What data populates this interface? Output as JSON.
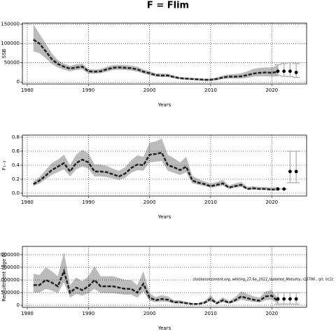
{
  "title": "F = Flim",
  "chart_data": [
    {
      "type": "line",
      "ylabel": "SSB",
      "xlabel": "Years",
      "color": "#222222",
      "band_color": "#bbbbbb",
      "grid": true,
      "xlim": [
        1979.2,
        2025.7
      ],
      "ylim": [
        -5000,
        153000
      ],
      "xticks": [
        1980,
        1990,
        2000,
        2010,
        2020
      ],
      "yticks": [
        0,
        50000,
        100000,
        150000
      ],
      "x": [
        1981,
        1982,
        1983,
        1984,
        1985,
        1986,
        1987,
        1988,
        1989,
        1990,
        1991,
        1992,
        1993,
        1994,
        1995,
        1996,
        1997,
        1998,
        1999,
        2000,
        2001,
        2002,
        2003,
        2004,
        2005,
        2006,
        2007,
        2008,
        2009,
        2010,
        2011,
        2012,
        2013,
        2014,
        2015,
        2016,
        2017,
        2018,
        2019,
        2020,
        2021
      ],
      "values": [
        110000,
        100000,
        80000,
        60000,
        47000,
        40000,
        35000,
        38000,
        40000,
        28000,
        27000,
        28000,
        33000,
        37000,
        38000,
        37000,
        36000,
        33000,
        27000,
        23000,
        18000,
        17000,
        17000,
        13000,
        10000,
        9000,
        8000,
        7000,
        6000,
        6000,
        8000,
        12000,
        14000,
        14000,
        15000,
        18000,
        22000,
        24000,
        25000,
        24000,
        27000
      ],
      "band": {
        "lower": [
          80000,
          75000,
          62000,
          47000,
          38000,
          32000,
          28000,
          31000,
          33000,
          22000,
          22000,
          23000,
          27000,
          31000,
          32000,
          31000,
          30000,
          27000,
          22000,
          18000,
          14000,
          13000,
          13000,
          10000,
          7000,
          6000,
          5000,
          4000,
          3000,
          3000,
          5000,
          8000,
          9000,
          9000,
          9000,
          11000,
          14000,
          15000,
          15000,
          14000,
          15000
        ],
        "upper": [
          150000,
          125000,
          100000,
          75000,
          57000,
          48000,
          42000,
          46000,
          48000,
          34000,
          33000,
          34000,
          40000,
          44000,
          45000,
          44000,
          43000,
          40000,
          33000,
          28000,
          23000,
          22000,
          22000,
          17000,
          13000,
          12000,
          11000,
          10000,
          9000,
          9000,
          12000,
          17000,
          20000,
          21000,
          23000,
          28000,
          34000,
          37000,
          38000,
          38000,
          44000
        ]
      },
      "projection": {
        "x": [
          2021,
          2022,
          2023,
          2024
        ],
        "values": [
          28000,
          28000,
          28000,
          25000
        ],
        "lower": [
          17000,
          15000,
          14000,
          12000
        ],
        "upper": [
          45000,
          48000,
          50000,
          48000
        ]
      }
    },
    {
      "type": "line",
      "ylabel": "F₁₋₃",
      "xlabel": "Years",
      "color": "#222222",
      "band_color": "#bbbbbb",
      "grid": true,
      "xlim": [
        1979.2,
        2025.7
      ],
      "ylim": [
        -0.04,
        0.83
      ],
      "xticks": [
        1980,
        1990,
        2000,
        2010,
        2020
      ],
      "yticks": [
        {
          "value": 0,
          "label": "0.0"
        },
        0.2,
        0.4,
        0.6,
        0.8
      ],
      "x": [
        1981,
        1982,
        1983,
        1984,
        1985,
        1986,
        1987,
        1988,
        1989,
        1990,
        1991,
        1992,
        1993,
        1994,
        1995,
        1996,
        1997,
        1998,
        1999,
        2000,
        2001,
        2002,
        2003,
        2004,
        2005,
        2006,
        2007,
        2008,
        2009,
        2010,
        2011,
        2012,
        2013,
        2014,
        2015,
        2016,
        2017,
        2018,
        2019,
        2020,
        2021
      ],
      "values": [
        0.13,
        0.18,
        0.25,
        0.33,
        0.38,
        0.43,
        0.31,
        0.43,
        0.48,
        0.44,
        0.31,
        0.31,
        0.3,
        0.27,
        0.24,
        0.28,
        0.36,
        0.41,
        0.4,
        0.55,
        0.56,
        0.58,
        0.4,
        0.37,
        0.33,
        0.38,
        0.18,
        0.15,
        0.13,
        0.1,
        0.12,
        0.14,
        0.08,
        0.1,
        0.12,
        0.06,
        0.07,
        0.06,
        0.06,
        0.05,
        0.06
      ],
      "band": {
        "lower": [
          0.1,
          0.14,
          0.2,
          0.26,
          0.3,
          0.34,
          0.24,
          0.34,
          0.38,
          0.35,
          0.24,
          0.24,
          0.23,
          0.21,
          0.19,
          0.22,
          0.29,
          0.33,
          0.32,
          0.44,
          0.45,
          0.46,
          0.32,
          0.29,
          0.26,
          0.3,
          0.14,
          0.12,
          0.1,
          0.08,
          0.09,
          0.11,
          0.06,
          0.08,
          0.09,
          0.05,
          0.05,
          0.05,
          0.05,
          0.04,
          0.04
        ],
        "upper": [
          0.17,
          0.23,
          0.33,
          0.43,
          0.48,
          0.55,
          0.4,
          0.55,
          0.62,
          0.57,
          0.41,
          0.41,
          0.39,
          0.35,
          0.32,
          0.37,
          0.47,
          0.54,
          0.52,
          0.72,
          0.74,
          0.78,
          0.55,
          0.5,
          0.44,
          0.52,
          0.25,
          0.2,
          0.17,
          0.14,
          0.16,
          0.19,
          0.11,
          0.14,
          0.16,
          0.09,
          0.1,
          0.09,
          0.09,
          0.08,
          0.09
        ]
      },
      "projection": {
        "x": [
          2021,
          2022,
          2023,
          2024
        ],
        "values": [
          0.06,
          0.06,
          0.31,
          0.31
        ],
        "lower": [
          0.06,
          0.06,
          0.15,
          0.15
        ],
        "upper": [
          0.06,
          0.06,
          0.6,
          0.6
        ]
      }
    },
    {
      "type": "line",
      "ylabel": "Recruitment (age 0)",
      "xlabel": "Years",
      "color": "#222222",
      "band_color": "#bbbbbb",
      "grid": true,
      "annotation": "stockassessment.org, whiting_27.6a_2022_Updated_Maturity, r16786 , git: ec2c",
      "xlim": [
        1979.2,
        2025.7
      ],
      "ylim": [
        -80000,
        2330000
      ],
      "xticks": [
        1980,
        1990,
        2000,
        2010,
        2020
      ],
      "yticks": [
        0,
        500000,
        1000000,
        1500000,
        2000000
      ],
      "x": [
        1981,
        1982,
        1983,
        1984,
        1985,
        1986,
        1987,
        1988,
        1989,
        1990,
        1991,
        1992,
        1993,
        1994,
        1995,
        1996,
        1997,
        1998,
        1999,
        2000,
        2001,
        2002,
        2003,
        2004,
        2005,
        2006,
        2007,
        2008,
        2009,
        2010,
        2011,
        2012,
        2013,
        2014,
        2015,
        2016,
        2017,
        2018,
        2019,
        2020,
        2021
      ],
      "values": [
        800000,
        800000,
        1000000,
        900000,
        750000,
        1350000,
        500000,
        700000,
        600000,
        750000,
        1000000,
        750000,
        750000,
        750000,
        700000,
        650000,
        650000,
        500000,
        850000,
        300000,
        200000,
        250000,
        220000,
        120000,
        120000,
        80000,
        50000,
        50000,
        100000,
        250000,
        80000,
        200000,
        100000,
        200000,
        350000,
        280000,
        220000,
        180000,
        350000,
        380000,
        150000
      ],
      "band": {
        "lower": [
          500000,
          500000,
          650000,
          580000,
          480000,
          900000,
          300000,
          450000,
          380000,
          480000,
          650000,
          480000,
          480000,
          480000,
          450000,
          420000,
          420000,
          300000,
          550000,
          180000,
          120000,
          150000,
          130000,
          70000,
          70000,
          50000,
          30000,
          30000,
          60000,
          150000,
          50000,
          120000,
          60000,
          120000,
          220000,
          170000,
          130000,
          110000,
          200000,
          220000,
          80000
        ],
        "upper": [
          1250000,
          1200000,
          1500000,
          1350000,
          1150000,
          2100000,
          800000,
          1100000,
          950000,
          1150000,
          1550000,
          1150000,
          1150000,
          1150000,
          1080000,
          1000000,
          1000000,
          800000,
          1350000,
          480000,
          320000,
          400000,
          350000,
          200000,
          200000,
          140000,
          90000,
          90000,
          170000,
          400000,
          140000,
          320000,
          170000,
          320000,
          550000,
          450000,
          360000,
          300000,
          550000,
          600000,
          280000
        ]
      },
      "projection": {
        "x": [
          2021,
          2022,
          2023,
          2024
        ],
        "values": [
          250000,
          250000,
          250000,
          250000
        ],
        "lower": [
          50000,
          50000,
          50000,
          50000
        ],
        "upper": [
          500000,
          500000,
          500000,
          500000
        ]
      }
    }
  ]
}
